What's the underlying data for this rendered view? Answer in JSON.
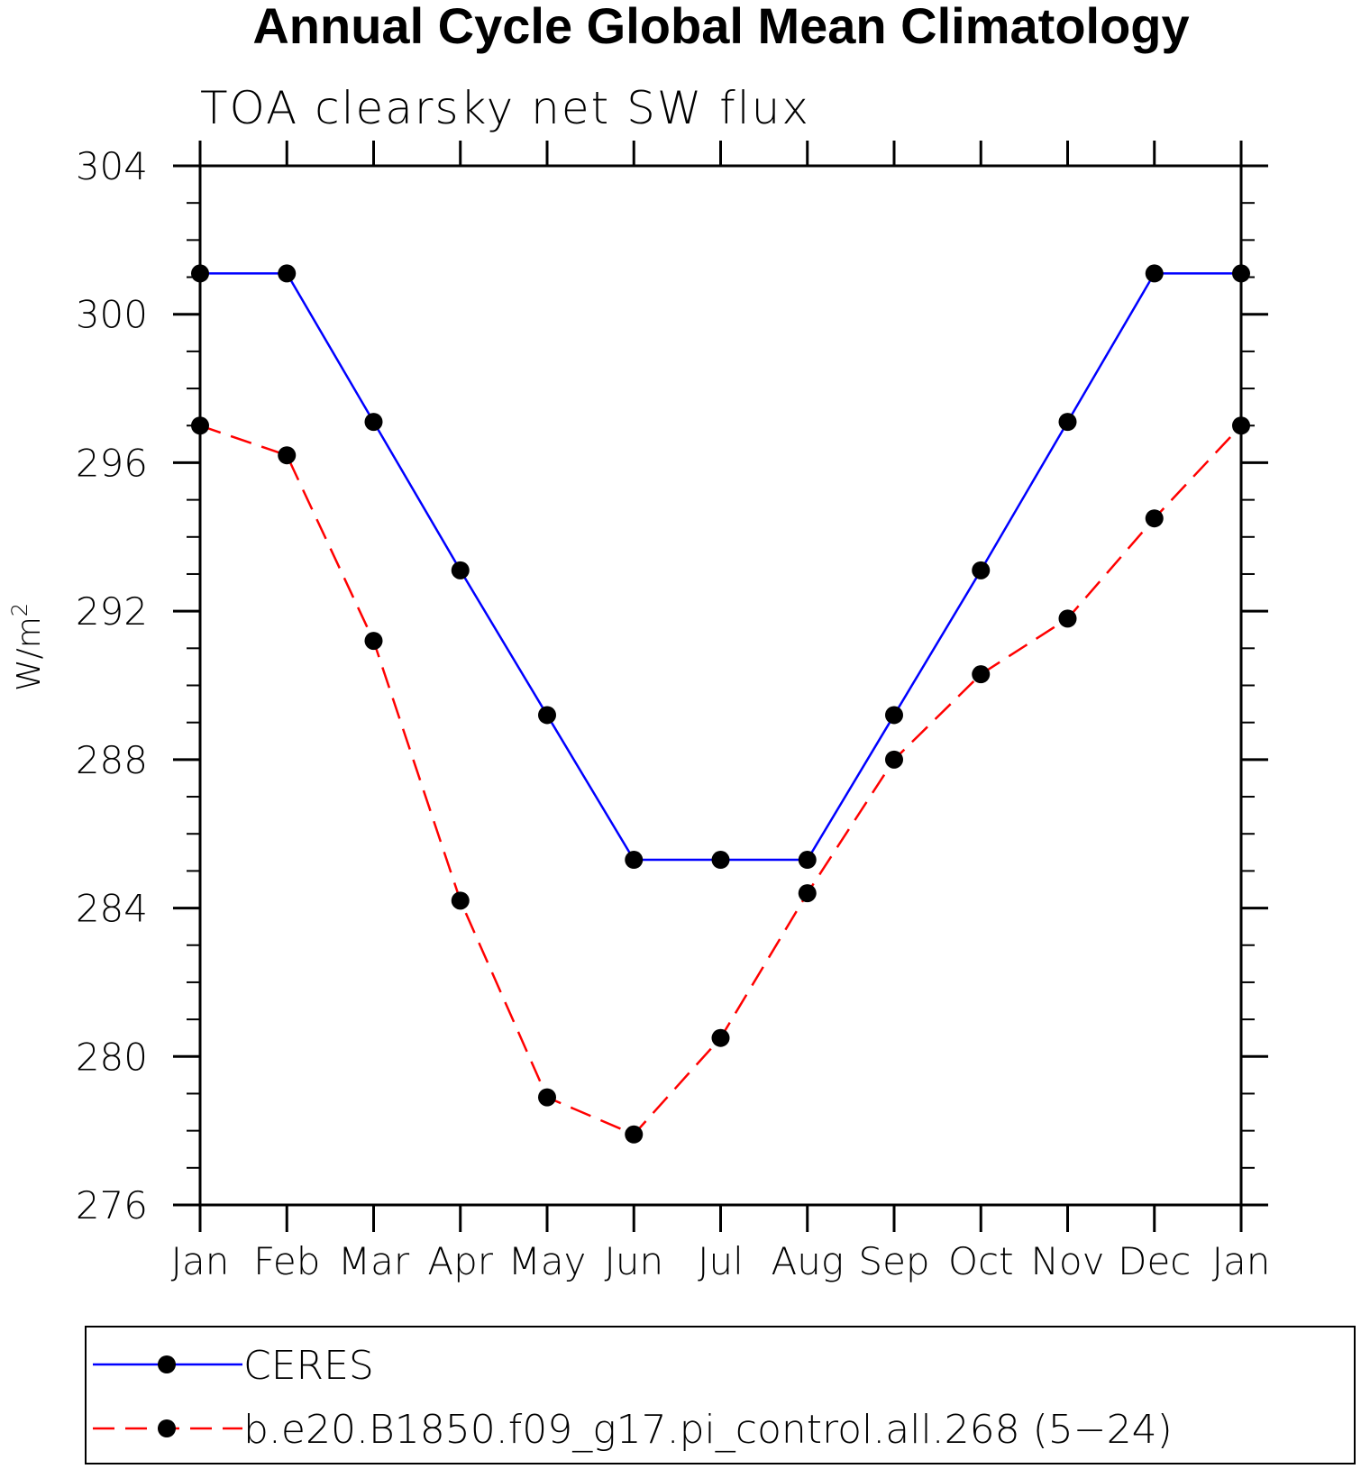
{
  "chart_data": {
    "type": "line",
    "title": "Annual Cycle Global Mean Climatology",
    "subtitle": "TOA clearsky net SW flux",
    "ylabel": "W/m",
    "ylabel_superscript": "2",
    "ylim": [
      276,
      304
    ],
    "yticks": [
      276,
      280,
      284,
      288,
      292,
      296,
      300,
      304
    ],
    "ytick_labels": [
      "276",
      "280",
      "284",
      "288",
      "292",
      "296",
      "300",
      "304"
    ],
    "categories": [
      "Jan",
      "Feb",
      "Mar",
      "Apr",
      "May",
      "Jun",
      "Jul",
      "Aug",
      "Sep",
      "Oct",
      "Nov",
      "Dec",
      "Jan"
    ],
    "grid": false,
    "legend_position": "bottom",
    "series": [
      {
        "name": "CERES",
        "color": "#0000ff",
        "dash": "solid",
        "values": [
          301.1,
          301.1,
          297.1,
          293.1,
          289.2,
          285.3,
          285.3,
          285.3,
          289.2,
          293.1,
          297.1,
          301.1,
          301.1
        ]
      },
      {
        "name": "b.e20.B1850.f09_g17.pi_control.all.268 (5−24)",
        "color": "#ff0000",
        "dash": "dashed",
        "values": [
          297.0,
          296.2,
          291.2,
          284.2,
          278.9,
          277.9,
          280.5,
          284.4,
          288.0,
          290.3,
          291.8,
          294.5,
          297.0
        ]
      }
    ]
  }
}
